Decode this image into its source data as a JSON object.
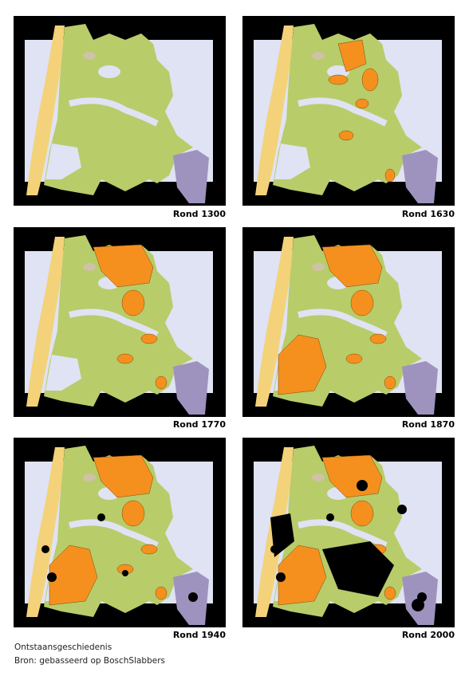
{
  "panels": [
    {
      "label": "Rond 1300"
    },
    {
      "label": "Rond 1630"
    },
    {
      "label": "Rond 1770"
    },
    {
      "label": "Rond 1870"
    },
    {
      "label": "Rond 1940"
    },
    {
      "label": "Rond 2000"
    }
  ],
  "caption": {
    "title": "Ontstaansgeschiedenis",
    "source": "Bron: gebasseerd op BoschSlabbers"
  }
}
